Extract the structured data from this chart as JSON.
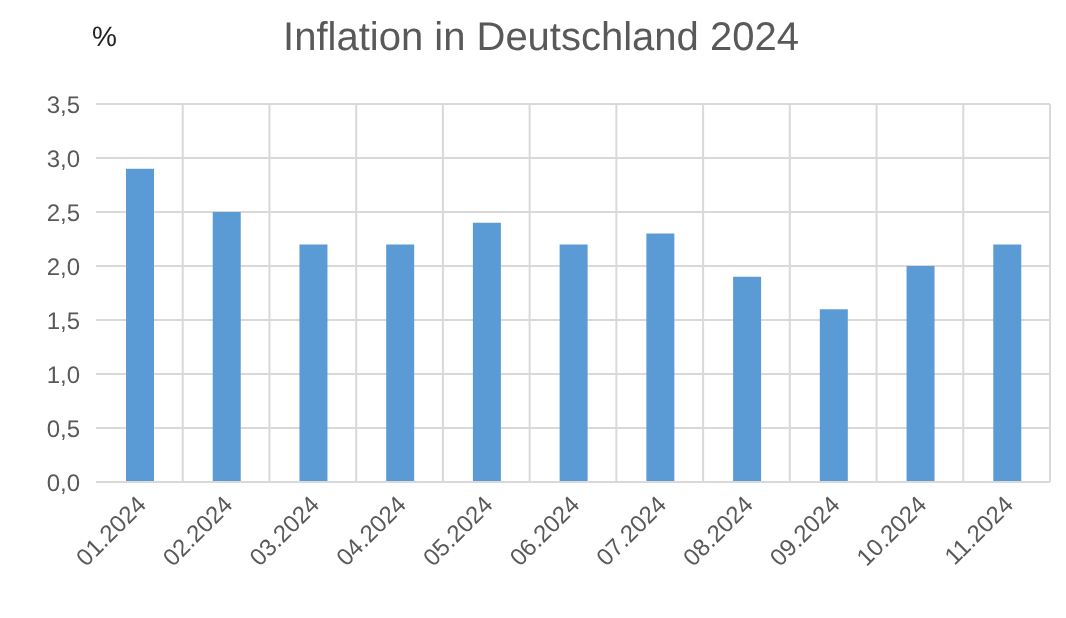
{
  "chart_data": {
    "type": "bar",
    "title": "Inflation in Deutschland 2024",
    "ylabel": "%",
    "categories": [
      "01.2024",
      "02.2024",
      "03.2024",
      "04.2024",
      "05.2024",
      "06.2024",
      "07.2024",
      "08.2024",
      "09.2024",
      "10.2024",
      "11.2024"
    ],
    "values": [
      2.9,
      2.5,
      2.2,
      2.2,
      2.4,
      2.2,
      2.3,
      1.9,
      1.6,
      2.0,
      2.2
    ],
    "color": "#5b9bd5",
    "ylim": [
      0,
      3.5
    ],
    "yticks": [
      {
        "value": 0,
        "label": "0,0"
      },
      {
        "value": 0.5,
        "label": "0,5"
      },
      {
        "value": 1,
        "label": "1,0"
      },
      {
        "value": 1.5,
        "label": "1,5"
      },
      {
        "value": 2,
        "label": "2,0"
      },
      {
        "value": 2.5,
        "label": "2,5"
      },
      {
        "value": 3,
        "label": "3,0"
      },
      {
        "value": 3.5,
        "label": "3,5"
      }
    ],
    "grid": true
  }
}
